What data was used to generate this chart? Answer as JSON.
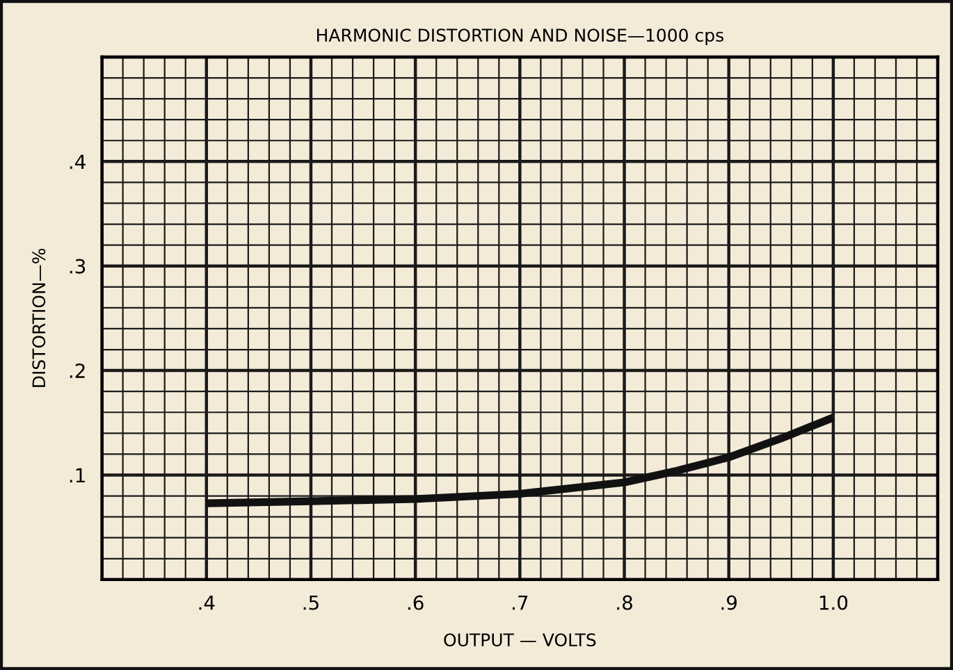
{
  "chart_data": {
    "type": "line",
    "title": "HARMONIC DISTORTION AND NOISE—1000 cps",
    "xlabel": "OUTPUT — VOLTS",
    "ylabel": "DISTORTION—%",
    "x": [
      0.4,
      0.5,
      0.6,
      0.7,
      0.8,
      0.85,
      0.9,
      0.95,
      1.0
    ],
    "series": [
      {
        "color": "#111111",
        "values": [
          0.073,
          0.075,
          0.077,
          0.082,
          0.093,
          0.104,
          0.117,
          0.135,
          0.155
        ]
      }
    ],
    "xlim": [
      0.3,
      1.1
    ],
    "ylim": [
      0,
      0.5
    ],
    "xticks": [
      {
        "value": 0.4,
        "label": ".4"
      },
      {
        "value": 0.5,
        "label": ".5"
      },
      {
        "value": 0.6,
        "label": ".6"
      },
      {
        "value": 0.7,
        "label": ".7"
      },
      {
        "value": 0.8,
        "label": ".8"
      },
      {
        "value": 0.9,
        "label": ".9"
      },
      {
        "value": 1.0,
        "label": "1.0"
      }
    ],
    "yticks": [
      {
        "value": 0.1,
        "label": ".1"
      },
      {
        "value": 0.2,
        "label": ".2"
      },
      {
        "value": 0.3,
        "label": ".3"
      },
      {
        "value": 0.4,
        "label": ".4"
      }
    ],
    "grid": true,
    "marker": "none",
    "line_style": "solid"
  }
}
